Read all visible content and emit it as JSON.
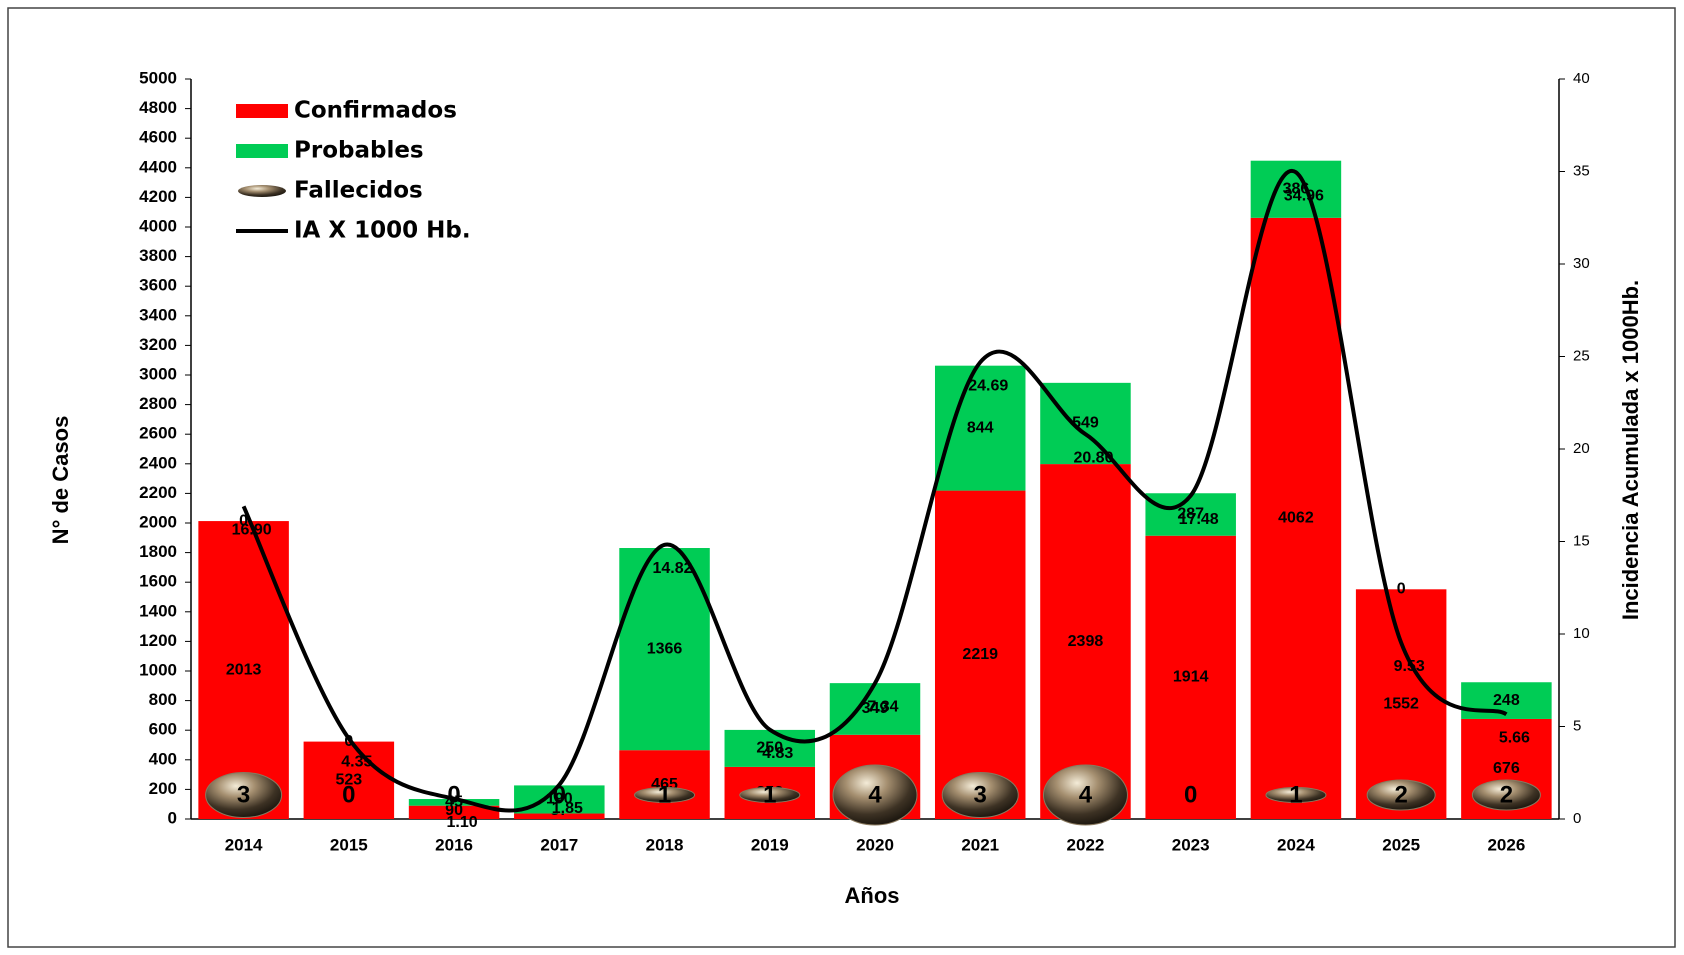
{
  "chart_data": {
    "type": "bar",
    "x_label": "Años",
    "y_label": "N° de Casos",
    "y2_label": "Incidencia Acumulada x 1000Hb.",
    "categories": [
      "2014",
      "2015",
      "2016",
      "2017",
      "2018",
      "2019",
      "2020",
      "2021",
      "2022",
      "2023",
      "2024",
      "2025",
      "2026"
    ],
    "series": [
      {
        "name": "Confirmados",
        "type": "bar",
        "color": "#ff0000",
        "values": [
          2013,
          523,
          90,
          37,
          465,
          352,
          569,
          2219,
          2398,
          1914,
          4062,
          1552,
          676
        ]
      },
      {
        "name": "Probables",
        "type": "bar",
        "color": "#00cc55",
        "values": [
          0,
          0,
          45,
          190,
          1366,
          250,
          349,
          844,
          549,
          287,
          386,
          0,
          248
        ]
      },
      {
        "name": "Fallecidos",
        "type": "marker",
        "color": "#6b5a45",
        "values": [
          3,
          0,
          0,
          0,
          1,
          1,
          4,
          3,
          4,
          0,
          1,
          2,
          2
        ]
      },
      {
        "name": "IA X 1000 Hb.",
        "type": "line",
        "axis": "y2",
        "color": "#000000",
        "values": [
          16.9,
          4.35,
          1.1,
          1.85,
          14.82,
          4.83,
          7.34,
          24.69,
          20.8,
          17.48,
          34.96,
          9.53,
          5.66
        ],
        "value_labels": [
          "16.90",
          "4.35",
          "1.10",
          "1.85",
          "14.82",
          "4.83",
          "7.34",
          "24.69",
          "20.80",
          "17.48",
          "34.96",
          "9.53",
          "5.66"
        ]
      }
    ],
    "ylim": [
      0,
      5000
    ],
    "yticks": [
      0,
      200,
      400,
      600,
      800,
      1000,
      1200,
      1400,
      1600,
      1800,
      2000,
      2200,
      2400,
      2600,
      2800,
      3000,
      3200,
      3400,
      3600,
      3800,
      4000,
      4200,
      4400,
      4600,
      4800,
      5000
    ],
    "y2lim": [
      0,
      40
    ],
    "y2ticks": [
      0,
      5,
      10,
      15,
      20,
      25,
      30,
      35,
      40
    ],
    "stacked": true,
    "legend": "upper left"
  }
}
